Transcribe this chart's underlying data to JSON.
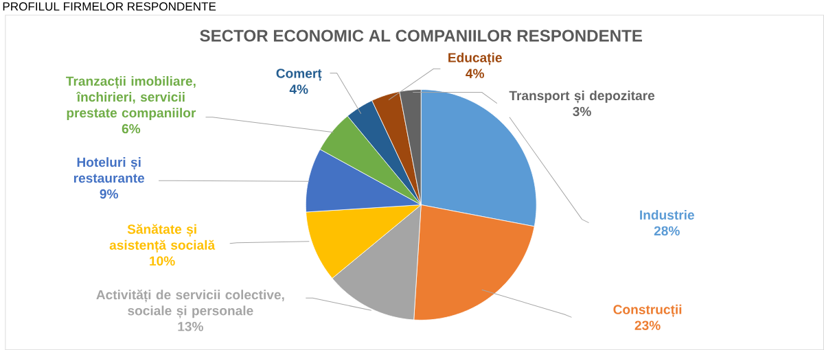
{
  "chart_data": {
    "type": "pie",
    "title": "SECTOR ECONOMIC AL COMPANIILOR RESPONDENTE",
    "annotations": [
      "PROFILUL FIRMELOR RESPONDENTE"
    ],
    "categories": [
      "Industrie",
      "Construcții",
      "Activități de servicii colective, sociale și personale",
      "Sănătate și asistență socială",
      "Hoteluri și restaurante",
      "Tranzacții imobiliare, închirieri, servicii prestate companiilor",
      "Comerț",
      "Educație",
      "Transport și depozitare"
    ],
    "values": [
      28,
      23,
      13,
      10,
      9,
      6,
      4,
      4,
      3
    ],
    "value_labels": [
      "28%",
      "23%",
      "13%",
      "10%",
      "9%",
      "6%",
      "4%",
      "4%",
      "3%"
    ],
    "colors": [
      "#5b9bd5",
      "#ed7d31",
      "#a5a5a5",
      "#ffc000",
      "#4472c4",
      "#70ad47",
      "#255e91",
      "#9e480e",
      "#636363"
    ]
  }
}
